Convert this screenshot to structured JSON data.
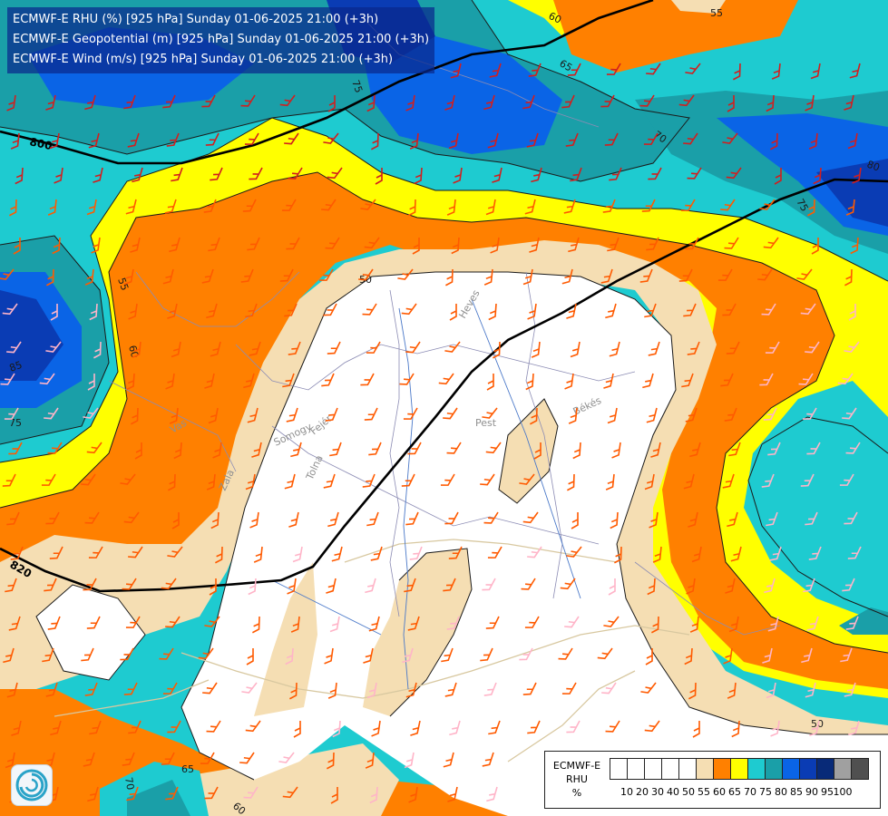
{
  "header": {
    "lines": [
      "ECMWF-E RHU (%) [925 hPa] Sunday 01-06-2025 21:00 (+3h)",
      "ECMWF-E Geopotential (m) [925 hPa] Sunday 01-06-2025 21:00 (+3h)",
      "ECMWF-E Wind (m/s) [925 hPa] Sunday 01-06-2025 21:00 (+3h)"
    ]
  },
  "legend": {
    "title_lines": [
      "ECMWF-E",
      "RHU",
      "%"
    ],
    "levels": [
      "10",
      "20",
      "30",
      "40",
      "50",
      "55",
      "60",
      "65",
      "70",
      "75",
      "80",
      "85",
      "90",
      "95",
      "100"
    ],
    "colors": [
      "#ffffff",
      "#ffffff",
      "#ffffff",
      "#ffffff",
      "#ffffff",
      "#f5deb3",
      "#ff8000",
      "#ffff00",
      "#1ecbd0",
      "#1a9fa8",
      "#0a64e6",
      "#0a3cb4",
      "#082a78",
      "#a0a0a0",
      "#505050"
    ]
  },
  "contours": {
    "geopotential_labels": [
      "800",
      "820"
    ],
    "rhu_labels": [
      "50",
      "55",
      "60",
      "65",
      "70",
      "75",
      "80",
      "85"
    ]
  },
  "place_labels": [
    "Heves",
    "Pest",
    "Békés",
    "Fejér",
    "Tolna",
    "Somogy",
    "Vas",
    "Zala"
  ],
  "colors": {
    "white": "#ffffff",
    "tan": "#f5deb3",
    "orange": "#ff8000",
    "yellow": "#ffff00",
    "cyan": "#1ecbd0",
    "teal": "#1a9fa8",
    "blue": "#0a64e6",
    "darkblue": "#0a3cb4",
    "navy": "#082a78",
    "barb_orange": "#ff5a00",
    "barb_red": "#d21e1e",
    "barb_pink": "#ffb4c8",
    "geopotential_line": "#000000"
  },
  "logo": {
    "icon": "ecmwf-swirl-icon"
  }
}
